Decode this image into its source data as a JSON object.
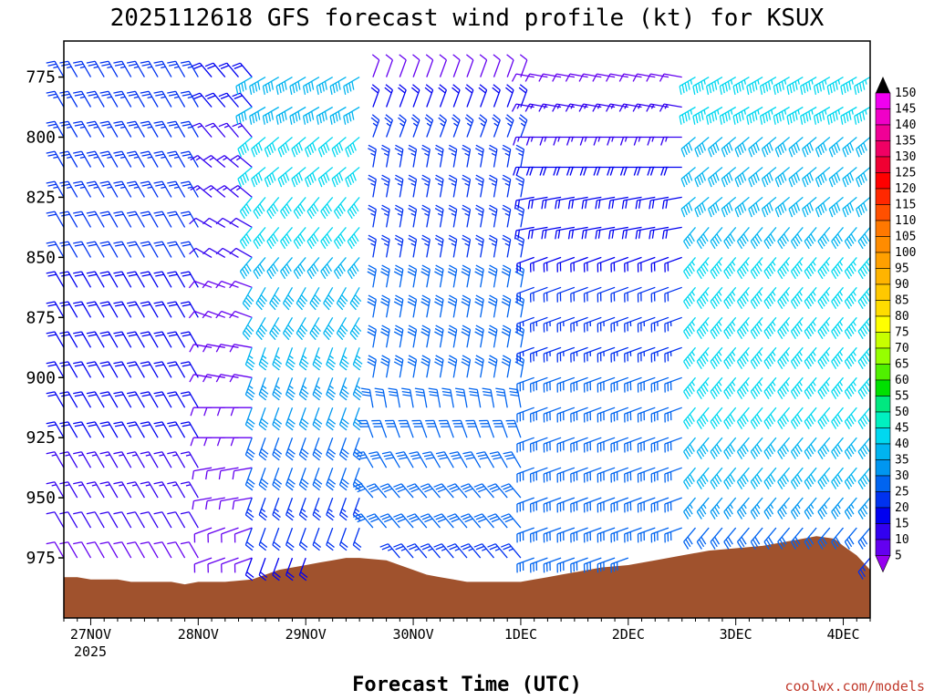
{
  "chart_data": {
    "type": "wind-barb-profile",
    "title": "2025112618 GFS forecast wind profile (kt) for KSUX",
    "xlabel": "Forecast Time (UTC)",
    "credit": "coolwx.com/models",
    "year_label": "2025",
    "units": "kt",
    "x_ticks": [
      {
        "label": "27NOV",
        "t": 6
      },
      {
        "label": "28NOV",
        "t": 30
      },
      {
        "label": "29NOV",
        "t": 54
      },
      {
        "label": "30NOV",
        "t": 78
      },
      {
        "label": "1DEC",
        "t": 102
      },
      {
        "label": "2DEC",
        "t": 126
      },
      {
        "label": "3DEC",
        "t": 150
      },
      {
        "label": "4DEC",
        "t": 174
      }
    ],
    "x_range_hours": [
      0,
      180
    ],
    "y_ticks": [
      775,
      800,
      825,
      850,
      875,
      900,
      925,
      950,
      975
    ],
    "y_range_hpa": [
      760,
      1000
    ],
    "colorbar_levels": [
      150,
      145,
      140,
      135,
      130,
      125,
      120,
      115,
      110,
      105,
      100,
      95,
      90,
      85,
      80,
      75,
      70,
      65,
      60,
      55,
      50,
      45,
      40,
      35,
      30,
      25,
      20,
      15,
      10,
      5
    ],
    "colorbar_colors": [
      "#f000f0",
      "#f000c8",
      "#f00096",
      "#f00064",
      "#f00032",
      "#ff0000",
      "#ff2800",
      "#ff5000",
      "#ff7800",
      "#ff8c00",
      "#ffa000",
      "#ffb400",
      "#ffc800",
      "#ffdc00",
      "#ffff00",
      "#c8ff00",
      "#96ff00",
      "#50f000",
      "#00e000",
      "#00e880",
      "#00f0c0",
      "#00d8f0",
      "#00b4f0",
      "#0096f0",
      "#0064f0",
      "#0032f0",
      "#0000f0",
      "#3200f0",
      "#6400f0",
      "#9600f0"
    ],
    "levels_hpa": [
      775,
      787.5,
      800,
      812.5,
      825,
      837.5,
      850,
      862.5,
      875,
      887.5,
      900,
      912.5,
      925,
      937.5,
      950,
      962.5,
      975
    ],
    "segments": [
      {
        "t_start": 0,
        "t_end": 30,
        "dir": [
          330,
          330,
          330,
          330,
          330,
          330,
          330,
          330,
          330,
          330,
          330,
          330,
          330,
          330,
          330,
          330,
          330
        ],
        "spd": [
          25,
          25,
          25,
          25,
          25,
          22,
          22,
          20,
          20,
          20,
          20,
          18,
          18,
          15,
          15,
          12,
          10
        ]
      },
      {
        "t_start": 33,
        "t_end": 42,
        "dir": [
          320,
          320,
          320,
          310,
          310,
          300,
          300,
          290,
          290,
          280,
          280,
          270,
          270,
          260,
          260,
          250,
          250
        ],
        "spd": [
          20,
          20,
          15,
          15,
          15,
          12,
          12,
          10,
          10,
          10,
          8,
          8,
          8,
          8,
          8,
          8,
          8
        ]
      },
      {
        "t_start": 42,
        "t_end": 66,
        "dir": [
          240,
          240,
          230,
          230,
          220,
          220,
          220,
          210,
          210,
          200,
          200,
          200,
          200,
          200,
          200,
          200,
          200
        ],
        "spd": [
          40,
          40,
          42,
          42,
          42,
          42,
          40,
          40,
          38,
          36,
          35,
          32,
          30,
          28,
          25,
          22,
          20
        ]
      },
      {
        "t_start": 69,
        "t_end": 102,
        "dir": [
          20,
          20,
          20,
          10,
          10,
          10,
          10,
          10,
          10,
          10,
          10,
          350,
          340,
          330,
          320,
          320,
          320
        ],
        "spd": [
          10,
          20,
          25,
          25,
          25,
          25,
          25,
          28,
          28,
          28,
          28,
          30,
          30,
          30,
          28,
          28,
          25
        ]
      },
      {
        "t_start": 105,
        "t_end": 138,
        "dir": [
          280,
          280,
          270,
          270,
          260,
          260,
          250,
          250,
          250,
          250,
          250,
          250,
          250,
          250,
          250,
          250,
          250
        ],
        "spd": [
          10,
          15,
          15,
          18,
          18,
          20,
          20,
          22,
          25,
          25,
          28,
          30,
          30,
          30,
          30,
          30,
          30
        ]
      },
      {
        "t_start": 141,
        "t_end": 180,
        "dir": [
          240,
          240,
          230,
          230,
          230,
          220,
          220,
          220,
          220,
          220,
          220,
          220,
          220,
          220,
          220,
          220,
          220
        ],
        "spd": [
          45,
          45,
          40,
          40,
          40,
          40,
          45,
          45,
          45,
          45,
          45,
          42,
          40,
          38,
          35,
          30,
          25
        ]
      }
    ],
    "terrain_hpa": [
      [
        0,
        983
      ],
      [
        3,
        983
      ],
      [
        6,
        984
      ],
      [
        12,
        984
      ],
      [
        15,
        985
      ],
      [
        18,
        985
      ],
      [
        24,
        985
      ],
      [
        27,
        986
      ],
      [
        30,
        985
      ],
      [
        36,
        985
      ],
      [
        42,
        984
      ],
      [
        45,
        982
      ],
      [
        48,
        980
      ],
      [
        51,
        979
      ],
      [
        54,
        978
      ],
      [
        57,
        977
      ],
      [
        60,
        976
      ],
      [
        63,
        975
      ],
      [
        66,
        975
      ],
      [
        72,
        976
      ],
      [
        75,
        978
      ],
      [
        78,
        980
      ],
      [
        81,
        982
      ],
      [
        84,
        983
      ],
      [
        87,
        984
      ],
      [
        90,
        985
      ],
      [
        96,
        985
      ],
      [
        102,
        985
      ],
      [
        105,
        984
      ],
      [
        108,
        983
      ],
      [
        111,
        982
      ],
      [
        114,
        981
      ],
      [
        117,
        980
      ],
      [
        120,
        979
      ],
      [
        126,
        978
      ],
      [
        132,
        976
      ],
      [
        138,
        974
      ],
      [
        144,
        972
      ],
      [
        150,
        971
      ],
      [
        156,
        970
      ],
      [
        162,
        968
      ],
      [
        168,
        966
      ],
      [
        172,
        967
      ],
      [
        174,
        970
      ],
      [
        177,
        974
      ],
      [
        180,
        980
      ]
    ],
    "terrain_color": "#a0522d"
  }
}
